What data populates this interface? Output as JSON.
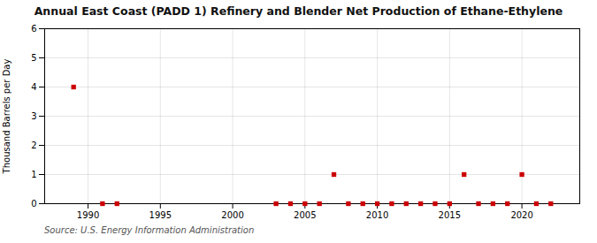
{
  "chart_data": {
    "type": "scatter",
    "title": "Annual East Coast (PADD 1) Refinery and Blender Net Production of Ethane-Ethylene",
    "ylabel": "Thousand Barrels per Day",
    "source": "Source: U.S. Energy Information Administration",
    "x": [
      1989,
      1991,
      1992,
      2003,
      2004,
      2005,
      2006,
      2007,
      2008,
      2009,
      2010,
      2011,
      2012,
      2013,
      2014,
      2015,
      2016,
      2017,
      2018,
      2019,
      2020,
      2021,
      2022
    ],
    "values": [
      4,
      0,
      0,
      0,
      0,
      0,
      0,
      1,
      0,
      0,
      0,
      0,
      0,
      0,
      0,
      0,
      1,
      0,
      0,
      0,
      1,
      0,
      0
    ],
    "color": "#cc0000",
    "marker": "square",
    "xlim": [
      1987,
      2024
    ],
    "ylim": [
      0,
      6
    ],
    "xticks": [
      1990,
      1995,
      2000,
      2005,
      2010,
      2015,
      2020
    ],
    "yticks": [
      0,
      1,
      2,
      3,
      4,
      5,
      6
    ],
    "grid": true
  }
}
